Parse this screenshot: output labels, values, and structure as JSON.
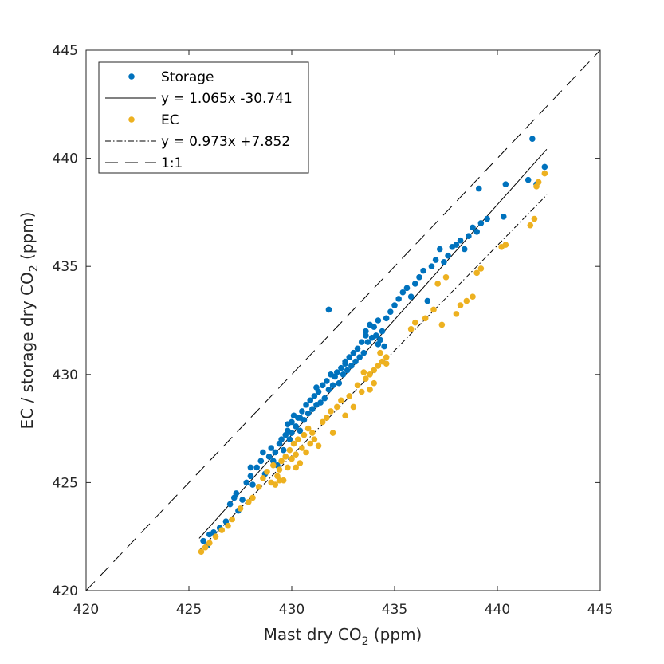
{
  "chart_data": {
    "type": "scatter",
    "xlabel": "Mast dry CO",
    "xlabel_sub": "2",
    "xlabel_tail": " (ppm)",
    "ylabel": "EC / storage dry CO",
    "ylabel_sub": "2",
    "ylabel_tail": " (ppm)",
    "xlim": [
      420,
      445
    ],
    "ylim": [
      420,
      445
    ],
    "xticks": [
      "420",
      "425",
      "430",
      "435",
      "440",
      "445"
    ],
    "yticks": [
      "420",
      "425",
      "430",
      "435",
      "440",
      "445"
    ],
    "grid": false,
    "legend_position": "top-left",
    "colors": {
      "storage": "#0072BD",
      "ec": "#EDB120",
      "line": "#000000"
    },
    "series": [
      {
        "name": "Storage",
        "kind": "points",
        "color": "#0072BD",
        "points": [
          [
            425.7,
            422.3
          ],
          [
            425.9,
            422.1
          ],
          [
            426.0,
            422.6
          ],
          [
            426.2,
            422.7
          ],
          [
            426.5,
            422.9
          ],
          [
            426.8,
            423.2
          ],
          [
            427.0,
            424.0
          ],
          [
            427.2,
            424.3
          ],
          [
            427.3,
            424.5
          ],
          [
            427.4,
            423.7
          ],
          [
            427.6,
            424.2
          ],
          [
            427.8,
            425.0
          ],
          [
            428.0,
            425.3
          ],
          [
            428.0,
            425.7
          ],
          [
            428.1,
            424.9
          ],
          [
            428.3,
            425.7
          ],
          [
            428.5,
            426.0
          ],
          [
            428.7,
            425.4
          ],
          [
            428.9,
            426.2
          ],
          [
            429.0,
            426.6
          ],
          [
            429.1,
            426.0
          ],
          [
            429.2,
            426.4
          ],
          [
            429.3,
            425.8
          ],
          [
            429.4,
            426.8
          ],
          [
            429.5,
            427.0
          ],
          [
            429.6,
            426.5
          ],
          [
            429.7,
            427.2
          ],
          [
            429.8,
            427.4
          ],
          [
            429.9,
            427.0
          ],
          [
            430.0,
            427.8
          ],
          [
            430.0,
            427.3
          ],
          [
            430.1,
            428.1
          ],
          [
            430.2,
            427.6
          ],
          [
            430.3,
            428.0
          ],
          [
            430.4,
            427.4
          ],
          [
            430.5,
            428.3
          ],
          [
            430.6,
            427.9
          ],
          [
            430.7,
            428.6
          ],
          [
            430.8,
            428.2
          ],
          [
            430.9,
            428.8
          ],
          [
            431.0,
            428.4
          ],
          [
            431.1,
            429.0
          ],
          [
            431.2,
            428.6
          ],
          [
            431.3,
            429.2
          ],
          [
            431.4,
            428.7
          ],
          [
            431.5,
            429.5
          ],
          [
            431.6,
            428.9
          ],
          [
            431.7,
            429.7
          ],
          [
            431.8,
            429.3
          ],
          [
            431.9,
            430.0
          ],
          [
            432.0,
            429.5
          ],
          [
            432.1,
            429.9
          ],
          [
            432.2,
            430.1
          ],
          [
            432.3,
            429.6
          ],
          [
            432.4,
            430.3
          ],
          [
            432.5,
            430.0
          ],
          [
            432.6,
            430.6
          ],
          [
            432.7,
            430.2
          ],
          [
            432.8,
            430.8
          ],
          [
            432.9,
            430.4
          ],
          [
            433.0,
            431.0
          ],
          [
            433.1,
            430.6
          ],
          [
            433.2,
            431.2
          ],
          [
            433.3,
            430.8
          ],
          [
            433.4,
            431.5
          ],
          [
            433.5,
            431.0
          ],
          [
            433.6,
            432.0
          ],
          [
            433.7,
            431.5
          ],
          [
            433.8,
            432.3
          ],
          [
            433.9,
            431.7
          ],
          [
            434.0,
            432.2
          ],
          [
            434.1,
            431.8
          ],
          [
            434.2,
            432.5
          ],
          [
            434.3,
            431.6
          ],
          [
            434.4,
            432.0
          ],
          [
            434.5,
            431.3
          ],
          [
            434.6,
            432.6
          ],
          [
            434.8,
            432.9
          ],
          [
            435.0,
            433.2
          ],
          [
            435.2,
            433.5
          ],
          [
            435.4,
            433.8
          ],
          [
            435.6,
            434.0
          ],
          [
            435.8,
            433.6
          ],
          [
            436.0,
            434.2
          ],
          [
            436.2,
            434.5
          ],
          [
            436.4,
            434.8
          ],
          [
            436.6,
            433.4
          ],
          [
            436.8,
            435.0
          ],
          [
            437.0,
            435.3
          ],
          [
            437.2,
            435.8
          ],
          [
            437.4,
            435.2
          ],
          [
            437.6,
            435.5
          ],
          [
            437.8,
            435.9
          ],
          [
            438.0,
            436.0
          ],
          [
            438.2,
            436.2
          ],
          [
            438.4,
            435.8
          ],
          [
            438.6,
            436.4
          ],
          [
            438.8,
            436.8
          ],
          [
            439.0,
            436.6
          ],
          [
            439.2,
            437.0
          ],
          [
            439.5,
            437.2
          ],
          [
            440.3,
            437.3
          ],
          [
            440.4,
            438.8
          ],
          [
            439.1,
            438.6
          ],
          [
            441.5,
            439.0
          ],
          [
            441.7,
            440.9
          ],
          [
            441.9,
            438.8
          ],
          [
            442.3,
            439.6
          ],
          [
            431.8,
            433.0
          ],
          [
            434.2,
            431.4
          ],
          [
            433.6,
            431.8
          ],
          [
            432.6,
            430.5
          ],
          [
            431.2,
            429.4
          ],
          [
            430.4,
            428.0
          ],
          [
            429.8,
            427.7
          ],
          [
            428.6,
            426.4
          ]
        ]
      },
      {
        "name": "y = 1.065x -30.741",
        "kind": "fit",
        "slope": 1.065,
        "intercept": -30.741,
        "x_range": [
          425.5,
          442.4
        ],
        "dash": "none"
      },
      {
        "name": "EC",
        "kind": "points",
        "color": "#EDB120",
        "points": [
          [
            425.6,
            421.8
          ],
          [
            425.8,
            422.0
          ],
          [
            426.0,
            422.2
          ],
          [
            426.3,
            422.5
          ],
          [
            426.6,
            422.8
          ],
          [
            426.9,
            423.0
          ],
          [
            427.1,
            423.3
          ],
          [
            427.5,
            423.8
          ],
          [
            427.9,
            424.1
          ],
          [
            428.1,
            424.3
          ],
          [
            428.4,
            424.8
          ],
          [
            428.6,
            425.2
          ],
          [
            428.8,
            425.5
          ],
          [
            429.0,
            425.0
          ],
          [
            429.1,
            425.8
          ],
          [
            429.2,
            424.9
          ],
          [
            429.3,
            425.3
          ],
          [
            429.4,
            425.6
          ],
          [
            429.5,
            426.0
          ],
          [
            429.6,
            425.1
          ],
          [
            429.7,
            426.2
          ],
          [
            429.8,
            425.7
          ],
          [
            429.9,
            426.5
          ],
          [
            430.0,
            426.1
          ],
          [
            430.1,
            426.8
          ],
          [
            430.2,
            426.3
          ],
          [
            430.3,
            427.0
          ],
          [
            430.4,
            425.9
          ],
          [
            430.5,
            426.6
          ],
          [
            430.6,
            427.2
          ],
          [
            430.7,
            426.4
          ],
          [
            430.8,
            427.5
          ],
          [
            430.9,
            426.8
          ],
          [
            431.0,
            427.3
          ],
          [
            431.1,
            427.0
          ],
          [
            431.3,
            426.7
          ],
          [
            431.5,
            427.8
          ],
          [
            431.7,
            428.0
          ],
          [
            431.9,
            428.3
          ],
          [
            432.0,
            427.3
          ],
          [
            432.2,
            428.5
          ],
          [
            432.4,
            428.8
          ],
          [
            432.6,
            428.1
          ],
          [
            432.8,
            429.0
          ],
          [
            433.0,
            428.5
          ],
          [
            433.2,
            429.5
          ],
          [
            433.4,
            429.2
          ],
          [
            433.6,
            429.8
          ],
          [
            433.8,
            430.0
          ],
          [
            434.0,
            430.2
          ],
          [
            434.2,
            430.4
          ],
          [
            434.4,
            430.6
          ],
          [
            434.6,
            430.8
          ],
          [
            434.0,
            429.6
          ],
          [
            433.8,
            429.3
          ],
          [
            433.5,
            430.1
          ],
          [
            435.8,
            432.1
          ],
          [
            436.0,
            432.4
          ],
          [
            436.5,
            432.6
          ],
          [
            436.9,
            433.0
          ],
          [
            437.1,
            434.2
          ],
          [
            437.5,
            434.5
          ],
          [
            438.0,
            432.8
          ],
          [
            438.2,
            433.2
          ],
          [
            438.5,
            433.4
          ],
          [
            438.8,
            433.6
          ],
          [
            439.0,
            434.7
          ],
          [
            439.2,
            434.9
          ],
          [
            440.2,
            435.9
          ],
          [
            440.4,
            436.0
          ],
          [
            441.6,
            436.9
          ],
          [
            441.8,
            437.2
          ],
          [
            441.9,
            438.7
          ],
          [
            442.0,
            438.9
          ],
          [
            442.3,
            439.3
          ],
          [
            437.3,
            432.3
          ],
          [
            434.6,
            430.5
          ],
          [
            434.3,
            431.0
          ],
          [
            430.2,
            425.7
          ],
          [
            429.4,
            425.1
          ]
        ]
      },
      {
        "name": "y = 0.973x +7.852",
        "kind": "fit",
        "slope": 0.973,
        "intercept": 7.852,
        "x_range": [
          425.5,
          442.4
        ],
        "dash": "7 3 1.5 3"
      },
      {
        "name": "1:1",
        "kind": "fit",
        "slope": 1,
        "intercept": 0,
        "x_range": [
          420,
          445
        ],
        "dash": "16 9"
      }
    ]
  }
}
